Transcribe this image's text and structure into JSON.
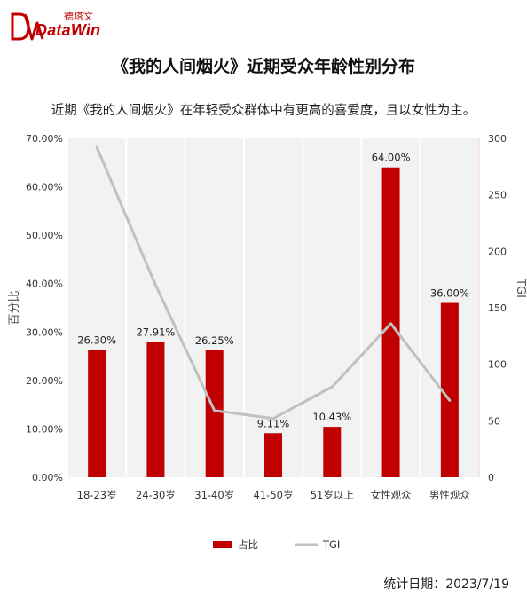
{
  "brand": {
    "name": "DataWin",
    "cn_name": "德塔文"
  },
  "colors": {
    "bar": "#c00000",
    "line": "#c0c0c0",
    "accent": "#c00000"
  },
  "chart_data": {
    "type": "bar",
    "title": "《我的人间烟火》近期受众年龄性别分布",
    "subtitle": "近期《我的人间烟火》在年轻受众群体中有更高的喜爱度，且以女性为主。",
    "categories": [
      "18-23岁",
      "24-30岁",
      "31-40岁",
      "41-50岁",
      "51岁以上",
      "女性观众",
      "男性观众"
    ],
    "series": [
      {
        "name": "占比",
        "type": "bar",
        "axis": "left",
        "values": [
          26.3,
          27.91,
          26.25,
          9.11,
          10.43,
          64.0,
          36.0
        ],
        "labels": [
          "26.30%",
          "27.91%",
          "26.25%",
          "9.11%",
          "10.43%",
          "64.00%",
          "36.00%"
        ]
      },
      {
        "name": "TGI",
        "type": "line",
        "axis": "right",
        "values": [
          292,
          170,
          59,
          52,
          80,
          136,
          68
        ]
      }
    ],
    "ylabel": "百分比",
    "y2label": "TGI",
    "ylim": [
      0,
      70
    ],
    "y2lim": [
      0,
      300
    ],
    "yticks": [
      "0.00%",
      "10.00%",
      "20.00%",
      "30.00%",
      "40.00%",
      "50.00%",
      "60.00%",
      "70.00%"
    ],
    "y2ticks": [
      "0",
      "50",
      "100",
      "150",
      "200",
      "250",
      "300"
    ],
    "legend_position": "bottom"
  },
  "footer": {
    "date_label": "统计日期：2023/7/19"
  }
}
